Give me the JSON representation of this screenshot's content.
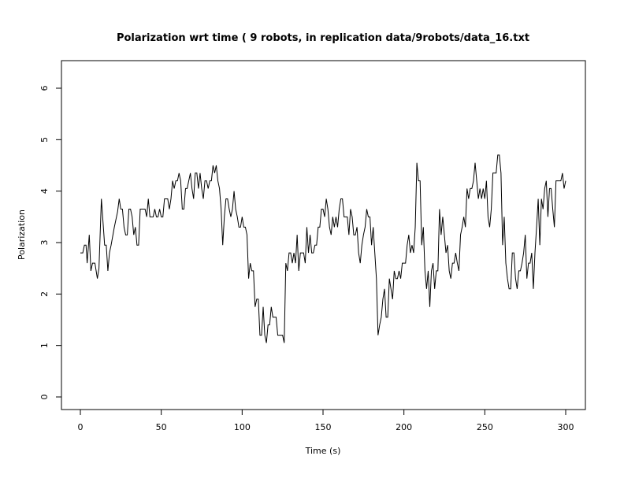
{
  "chart_data": {
    "type": "line",
    "title": "Polarization wrt time ( 9 robots, in replication  data/9robots/data_16.txt",
    "xlabel": "Time (s)",
    "ylabel": "Polarization",
    "xlim": [
      0,
      300
    ],
    "ylim": [
      0,
      6
    ],
    "xticks": [
      0,
      50,
      100,
      150,
      200,
      250,
      300
    ],
    "yticks": [
      0,
      1,
      2,
      3,
      4,
      5,
      6
    ],
    "grid": false,
    "series": [
      {
        "points": [
          [
            0,
            2.8
          ],
          [
            1.5,
            2.8
          ],
          [
            2.5,
            2.95
          ],
          [
            3.5,
            2.95
          ],
          [
            4.2,
            2.6
          ],
          [
            5.5,
            3.15
          ],
          [
            6.5,
            2.45
          ],
          [
            7.5,
            2.6
          ],
          [
            9,
            2.6
          ],
          [
            10.5,
            2.3
          ],
          [
            11.5,
            2.5
          ],
          [
            13,
            3.85
          ],
          [
            14,
            3.4
          ],
          [
            15,
            2.95
          ],
          [
            16,
            2.95
          ],
          [
            17,
            2.45
          ],
          [
            18,
            2.8
          ],
          [
            19,
            2.95
          ],
          [
            21,
            3.3
          ],
          [
            23,
            3.6
          ],
          [
            24,
            3.85
          ],
          [
            25,
            3.65
          ],
          [
            26,
            3.65
          ],
          [
            27,
            3.3
          ],
          [
            28,
            3.15
          ],
          [
            29,
            3.15
          ],
          [
            30,
            3.65
          ],
          [
            31,
            3.65
          ],
          [
            32,
            3.5
          ],
          [
            33,
            3.15
          ],
          [
            34,
            3.3
          ],
          [
            35,
            2.95
          ],
          [
            36,
            2.95
          ],
          [
            37,
            3.65
          ],
          [
            40,
            3.65
          ],
          [
            41,
            3.5
          ],
          [
            42,
            3.85
          ],
          [
            43,
            3.5
          ],
          [
            45,
            3.5
          ],
          [
            46,
            3.65
          ],
          [
            47,
            3.5
          ],
          [
            48,
            3.5
          ],
          [
            49,
            3.65
          ],
          [
            50,
            3.5
          ],
          [
            51,
            3.5
          ],
          [
            52,
            3.85
          ],
          [
            54,
            3.85
          ],
          [
            55,
            3.65
          ],
          [
            56,
            3.85
          ],
          [
            57,
            4.2
          ],
          [
            58,
            4.05
          ],
          [
            59,
            4.2
          ],
          [
            60,
            4.2
          ],
          [
            61,
            4.35
          ],
          [
            62,
            4.2
          ],
          [
            63,
            3.65
          ],
          [
            64,
            3.65
          ],
          [
            65,
            4.05
          ],
          [
            66,
            4.05
          ],
          [
            67,
            4.2
          ],
          [
            68,
            4.35
          ],
          [
            69,
            4.05
          ],
          [
            70,
            3.85
          ],
          [
            71,
            4.35
          ],
          [
            72,
            4.35
          ],
          [
            73,
            4.05
          ],
          [
            74,
            4.35
          ],
          [
            75,
            4.05
          ],
          [
            76,
            3.85
          ],
          [
            77,
            4.2
          ],
          [
            78,
            4.2
          ],
          [
            79,
            4.05
          ],
          [
            80,
            4.2
          ],
          [
            81,
            4.2
          ],
          [
            82,
            4.5
          ],
          [
            83,
            4.35
          ],
          [
            84,
            4.5
          ],
          [
            85,
            4.2
          ],
          [
            86,
            4.05
          ],
          [
            87,
            3.65
          ],
          [
            88,
            2.95
          ],
          [
            89,
            3.5
          ],
          [
            90,
            3.85
          ],
          [
            91,
            3.85
          ],
          [
            92,
            3.65
          ],
          [
            93,
            3.5
          ],
          [
            94,
            3.65
          ],
          [
            95,
            4.0
          ],
          [
            96,
            3.65
          ],
          [
            97,
            3.5
          ],
          [
            98,
            3.3
          ],
          [
            99,
            3.3
          ],
          [
            100,
            3.5
          ],
          [
            101,
            3.3
          ],
          [
            102,
            3.3
          ],
          [
            103,
            3.15
          ],
          [
            104,
            2.3
          ],
          [
            105,
            2.6
          ],
          [
            106,
            2.45
          ],
          [
            107,
            2.45
          ],
          [
            108,
            1.75
          ],
          [
            109,
            1.9
          ],
          [
            110,
            1.9
          ],
          [
            111,
            1.2
          ],
          [
            112,
            1.2
          ],
          [
            113,
            1.75
          ],
          [
            114,
            1.2
          ],
          [
            115,
            1.05
          ],
          [
            116,
            1.4
          ],
          [
            117,
            1.4
          ],
          [
            118,
            1.75
          ],
          [
            119,
            1.55
          ],
          [
            120,
            1.55
          ],
          [
            121,
            1.55
          ],
          [
            122,
            1.2
          ],
          [
            124,
            1.2
          ],
          [
            125,
            1.2
          ],
          [
            126,
            1.05
          ],
          [
            127,
            2.6
          ],
          [
            128,
            2.45
          ],
          [
            129,
            2.8
          ],
          [
            130,
            2.8
          ],
          [
            131,
            2.6
          ],
          [
            132,
            2.8
          ],
          [
            133,
            2.6
          ],
          [
            134,
            3.15
          ],
          [
            135,
            2.45
          ],
          [
            136,
            2.8
          ],
          [
            137,
            2.8
          ],
          [
            138,
            2.8
          ],
          [
            139,
            2.6
          ],
          [
            140,
            3.3
          ],
          [
            141,
            2.8
          ],
          [
            142,
            3.15
          ],
          [
            143,
            2.8
          ],
          [
            144,
            2.8
          ],
          [
            145,
            2.95
          ],
          [
            146,
            2.95
          ],
          [
            147,
            3.3
          ],
          [
            148,
            3.3
          ],
          [
            149,
            3.65
          ],
          [
            150,
            3.65
          ],
          [
            151,
            3.5
          ],
          [
            152,
            3.85
          ],
          [
            153,
            3.65
          ],
          [
            154,
            3.3
          ],
          [
            155,
            3.15
          ],
          [
            156,
            3.5
          ],
          [
            157,
            3.3
          ],
          [
            158,
            3.5
          ],
          [
            159,
            3.3
          ],
          [
            160,
            3.65
          ],
          [
            161,
            3.85
          ],
          [
            162,
            3.85
          ],
          [
            163,
            3.5
          ],
          [
            164,
            3.5
          ],
          [
            165,
            3.5
          ],
          [
            166,
            3.15
          ],
          [
            167,
            3.65
          ],
          [
            168,
            3.5
          ],
          [
            169,
            3.15
          ],
          [
            170,
            3.15
          ],
          [
            171,
            3.3
          ],
          [
            172,
            2.8
          ],
          [
            173,
            2.6
          ],
          [
            174,
            2.95
          ],
          [
            175,
            3.15
          ],
          [
            176,
            3.3
          ],
          [
            177,
            3.65
          ],
          [
            178,
            3.5
          ],
          [
            179,
            3.5
          ],
          [
            180,
            2.95
          ],
          [
            181,
            3.3
          ],
          [
            182,
            2.8
          ],
          [
            183,
            2.3
          ],
          [
            184,
            1.2
          ],
          [
            185,
            1.4
          ],
          [
            186,
            1.55
          ],
          [
            187,
            1.9
          ],
          [
            188,
            2.1
          ],
          [
            189,
            1.55
          ],
          [
            190,
            1.55
          ],
          [
            191,
            2.3
          ],
          [
            192,
            2.1
          ],
          [
            193,
            1.9
          ],
          [
            194,
            2.45
          ],
          [
            195,
            2.3
          ],
          [
            196,
            2.3
          ],
          [
            197,
            2.45
          ],
          [
            198,
            2.3
          ],
          [
            199,
            2.6
          ],
          [
            201,
            2.6
          ],
          [
            202,
            2.95
          ],
          [
            203,
            3.15
          ],
          [
            204,
            2.8
          ],
          [
            205,
            2.95
          ],
          [
            206,
            2.8
          ],
          [
            207,
            3.3
          ],
          [
            208,
            4.55
          ],
          [
            209,
            4.2
          ],
          [
            210,
            4.2
          ],
          [
            211,
            2.95
          ],
          [
            212,
            3.3
          ],
          [
            213,
            2.45
          ],
          [
            214,
            2.1
          ],
          [
            215,
            2.45
          ],
          [
            216,
            1.75
          ],
          [
            217,
            2.45
          ],
          [
            218,
            2.6
          ],
          [
            219,
            2.1
          ],
          [
            220,
            2.45
          ],
          [
            221,
            2.45
          ],
          [
            222,
            3.65
          ],
          [
            223,
            3.15
          ],
          [
            224,
            3.5
          ],
          [
            225,
            3.15
          ],
          [
            226,
            2.8
          ],
          [
            227,
            2.95
          ],
          [
            228,
            2.45
          ],
          [
            229,
            2.3
          ],
          [
            230,
            2.6
          ],
          [
            231,
            2.6
          ],
          [
            232,
            2.8
          ],
          [
            233,
            2.6
          ],
          [
            234,
            2.45
          ],
          [
            235,
            3.15
          ],
          [
            236,
            3.3
          ],
          [
            237,
            3.5
          ],
          [
            238,
            3.3
          ],
          [
            239,
            4.05
          ],
          [
            240,
            3.85
          ],
          [
            241,
            4.05
          ],
          [
            242,
            4.05
          ],
          [
            243,
            4.2
          ],
          [
            244,
            4.55
          ],
          [
            245,
            4.2
          ],
          [
            246,
            3.85
          ],
          [
            247,
            4.05
          ],
          [
            248,
            3.85
          ],
          [
            249,
            4.05
          ],
          [
            250,
            3.85
          ],
          [
            251,
            4.2
          ],
          [
            252,
            3.5
          ],
          [
            253,
            3.3
          ],
          [
            254,
            3.65
          ],
          [
            255,
            4.35
          ],
          [
            256,
            4.35
          ],
          [
            257,
            4.35
          ],
          [
            258,
            4.7
          ],
          [
            259,
            4.7
          ],
          [
            260,
            4.35
          ],
          [
            261,
            2.95
          ],
          [
            262,
            3.5
          ],
          [
            263,
            2.6
          ],
          [
            264,
            2.3
          ],
          [
            265,
            2.1
          ],
          [
            266,
            2.1
          ],
          [
            267,
            2.8
          ],
          [
            268,
            2.8
          ],
          [
            269,
            2.3
          ],
          [
            270,
            2.1
          ],
          [
            271,
            2.45
          ],
          [
            272,
            2.45
          ],
          [
            273,
            2.6
          ],
          [
            274,
            2.8
          ],
          [
            275,
            3.15
          ],
          [
            276,
            2.3
          ],
          [
            277,
            2.6
          ],
          [
            278,
            2.6
          ],
          [
            279,
            2.8
          ],
          [
            280,
            2.1
          ],
          [
            281,
            2.8
          ],
          [
            282,
            3.3
          ],
          [
            283,
            3.85
          ],
          [
            284,
            2.95
          ],
          [
            285,
            3.85
          ],
          [
            286,
            3.65
          ],
          [
            287,
            4.05
          ],
          [
            288,
            4.2
          ],
          [
            289,
            3.5
          ],
          [
            290,
            4.05
          ],
          [
            291,
            4.05
          ],
          [
            292,
            3.65
          ],
          [
            293,
            3.3
          ],
          [
            294,
            4.2
          ],
          [
            297,
            4.2
          ],
          [
            298,
            4.35
          ],
          [
            299,
            4.05
          ],
          [
            300,
            4.2
          ]
        ]
      }
    ]
  }
}
